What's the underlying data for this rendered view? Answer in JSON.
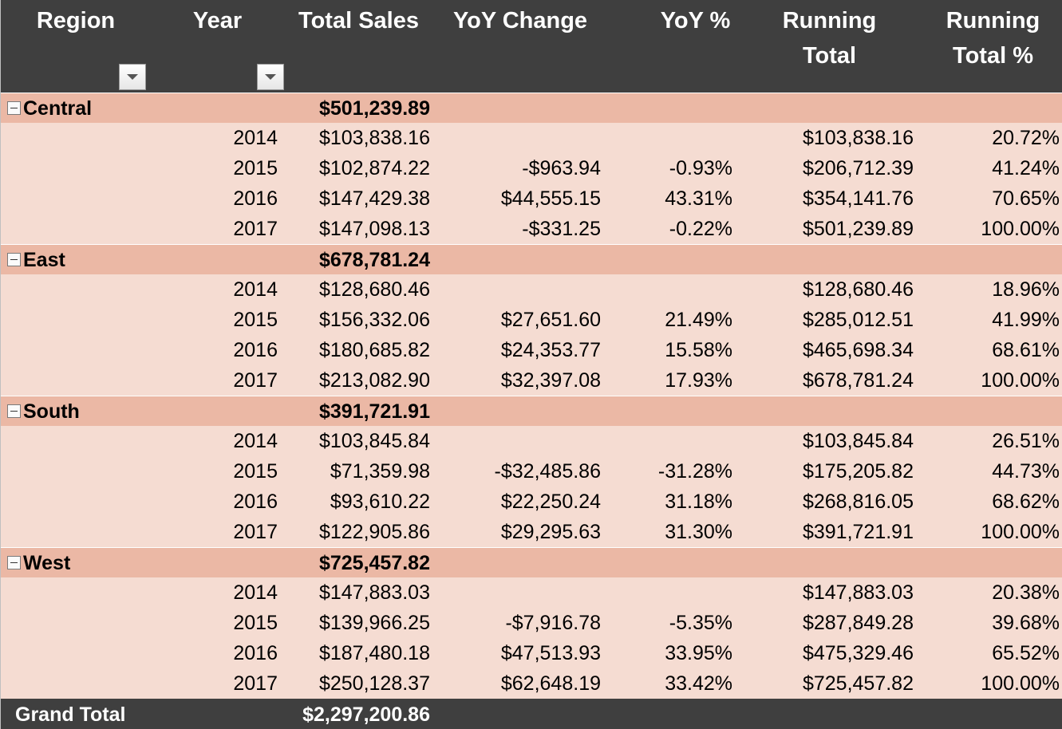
{
  "headers": {
    "region": "Region",
    "year": "Year",
    "total_sales": "Total Sales",
    "yoy_change": "YoY Change",
    "yoy_pct": "YoY %",
    "running_total_line1": "Running",
    "running_total_line2": "Total",
    "running_pct_line1": "Running",
    "running_pct_line2": "Total %"
  },
  "icons": {
    "filter": "chevron-down-icon",
    "collapse": "minus-box-icon"
  },
  "colors": {
    "header_bg": "#3f3f3f",
    "group_row_bg": "#ebb8a5",
    "data_row_bg": "#f5dcd2"
  },
  "groups": [
    {
      "name": "Central",
      "total": "$501,239.89",
      "rows": [
        {
          "year": "2014",
          "sales": "$103,838.16",
          "yoy": "",
          "yoy_pct": "",
          "running": "$103,838.16",
          "running_pct": "20.72%"
        },
        {
          "year": "2015",
          "sales": "$102,874.22",
          "yoy": "-$963.94",
          "yoy_pct": "-0.93%",
          "running": "$206,712.39",
          "running_pct": "41.24%"
        },
        {
          "year": "2016",
          "sales": "$147,429.38",
          "yoy": "$44,555.15",
          "yoy_pct": "43.31%",
          "running": "$354,141.76",
          "running_pct": "70.65%"
        },
        {
          "year": "2017",
          "sales": "$147,098.13",
          "yoy": "-$331.25",
          "yoy_pct": "-0.22%",
          "running": "$501,239.89",
          "running_pct": "100.00%"
        }
      ]
    },
    {
      "name": "East",
      "total": "$678,781.24",
      "rows": [
        {
          "year": "2014",
          "sales": "$128,680.46",
          "yoy": "",
          "yoy_pct": "",
          "running": "$128,680.46",
          "running_pct": "18.96%"
        },
        {
          "year": "2015",
          "sales": "$156,332.06",
          "yoy": "$27,651.60",
          "yoy_pct": "21.49%",
          "running": "$285,012.51",
          "running_pct": "41.99%"
        },
        {
          "year": "2016",
          "sales": "$180,685.82",
          "yoy": "$24,353.77",
          "yoy_pct": "15.58%",
          "running": "$465,698.34",
          "running_pct": "68.61%"
        },
        {
          "year": "2017",
          "sales": "$213,082.90",
          "yoy": "$32,397.08",
          "yoy_pct": "17.93%",
          "running": "$678,781.24",
          "running_pct": "100.00%"
        }
      ]
    },
    {
      "name": "South",
      "total": "$391,721.91",
      "rows": [
        {
          "year": "2014",
          "sales": "$103,845.84",
          "yoy": "",
          "yoy_pct": "",
          "running": "$103,845.84",
          "running_pct": "26.51%"
        },
        {
          "year": "2015",
          "sales": "$71,359.98",
          "yoy": "-$32,485.86",
          "yoy_pct": "-31.28%",
          "running": "$175,205.82",
          "running_pct": "44.73%"
        },
        {
          "year": "2016",
          "sales": "$93,610.22",
          "yoy": "$22,250.24",
          "yoy_pct": "31.18%",
          "running": "$268,816.05",
          "running_pct": "68.62%"
        },
        {
          "year": "2017",
          "sales": "$122,905.86",
          "yoy": "$29,295.63",
          "yoy_pct": "31.30%",
          "running": "$391,721.91",
          "running_pct": "100.00%"
        }
      ]
    },
    {
      "name": "West",
      "total": "$725,457.82",
      "rows": [
        {
          "year": "2014",
          "sales": "$147,883.03",
          "yoy": "",
          "yoy_pct": "",
          "running": "$147,883.03",
          "running_pct": "20.38%"
        },
        {
          "year": "2015",
          "sales": "$139,966.25",
          "yoy": "-$7,916.78",
          "yoy_pct": "-5.35%",
          "running": "$287,849.28",
          "running_pct": "39.68%"
        },
        {
          "year": "2016",
          "sales": "$187,480.18",
          "yoy": "$47,513.93",
          "yoy_pct": "33.95%",
          "running": "$475,329.46",
          "running_pct": "65.52%"
        },
        {
          "year": "2017",
          "sales": "$250,128.37",
          "yoy": "$62,648.19",
          "yoy_pct": "33.42%",
          "running": "$725,457.82",
          "running_pct": "100.00%"
        }
      ]
    }
  ],
  "grand_total": {
    "label": "Grand Total",
    "value": "$2,297,200.86"
  }
}
